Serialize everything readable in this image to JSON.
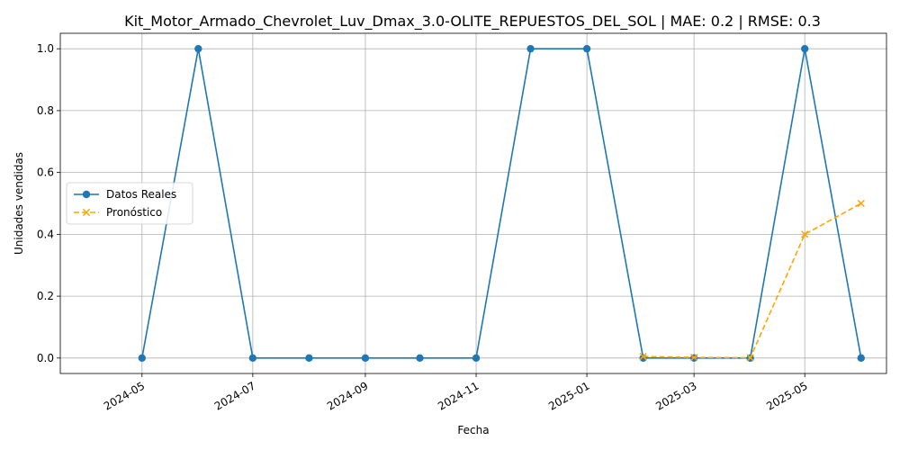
{
  "chart_data": {
    "type": "line",
    "title": "Kit_Motor_Armado_Chevrolet_Luv_Dmax_3.0-OLITE_REPUESTOS_DEL_SOL | MAE: 0.2 | RMSE: 0.3",
    "xlabel": "Fecha",
    "ylabel": "Unidades vendidas",
    "ylim": [
      -0.05,
      1.05
    ],
    "y_ticks": [
      "0.0",
      "0.2",
      "0.4",
      "0.6",
      "0.8",
      "1.0"
    ],
    "x_ticks": [
      "2024-05",
      "2024-07",
      "2024-09",
      "2024-11",
      "2025-01",
      "2025-03",
      "2025-05"
    ],
    "grid": true,
    "legend_position": "center-left",
    "series": [
      {
        "name": "Datos Reales",
        "color": "#1f77b4",
        "style": "solid",
        "marker": "circle",
        "x": [
          "2024-05-01",
          "2024-06-01",
          "2024-07-01",
          "2024-08-01",
          "2024-09-01",
          "2024-10-01",
          "2024-11-01",
          "2024-12-01",
          "2025-01-01",
          "2025-02-01",
          "2025-03-01",
          "2025-04-01",
          "2025-05-01",
          "2025-06-01"
        ],
        "values": [
          0,
          1,
          0,
          0,
          0,
          0,
          0,
          1,
          1,
          0,
          0,
          0,
          1,
          0
        ]
      },
      {
        "name": "Pronóstico",
        "color": "#ffa500",
        "style": "dashed",
        "marker": "x",
        "x": [
          "2025-02-01",
          "2025-03-01",
          "2025-04-01",
          "2025-05-01",
          "2025-06-01"
        ],
        "values": [
          0.005,
          0.002,
          0.001,
          0.4,
          0.5
        ]
      }
    ]
  }
}
